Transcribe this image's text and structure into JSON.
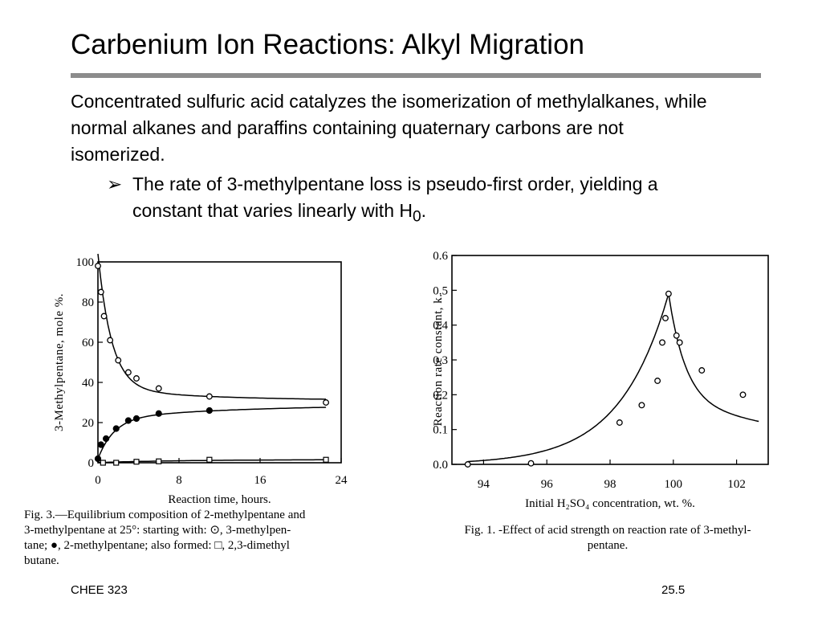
{
  "slide": {
    "title": "Carbenium Ion Reactions: Alkyl Migration",
    "paragraph": "Concentrated sulfuric acid catalyzes the isomerization of methylalkanes, while normal alkanes and paraffins containing quaternary carbons are not isomerized.",
    "bullet_arrow": "➢",
    "bullet_text_pre": "The rate of 3-methylpentane loss is pseudo-first order, yielding a constant that varies linearly with H",
    "bullet_sub": "0",
    "bullet_text_post": ".",
    "footer_left": "CHEE 323",
    "footer_right": "25.5"
  },
  "chart_data": [
    {
      "type": "scatter",
      "xlabel": "Reaction time, hours.",
      "ylabel": "3-Methylpentane, mole %.",
      "xlim": [
        0,
        24
      ],
      "ylim": [
        0,
        100
      ],
      "xticks": [
        "0",
        "8",
        "16",
        "24"
      ],
      "yticks": [
        "0",
        "20",
        "40",
        "60",
        "80",
        "100"
      ],
      "grid": false,
      "series": [
        {
          "marker": "open-circle",
          "x": [
            0,
            0.3,
            0.6,
            1.2,
            2.0,
            3.0,
            3.8,
            6.0,
            11.0,
            22.5
          ],
          "y": [
            98,
            85,
            73,
            61,
            51,
            45,
            42,
            37,
            33,
            30
          ]
        },
        {
          "marker": "filled-circle",
          "x": [
            0,
            0.3,
            0.8,
            1.8,
            3.0,
            3.8,
            6.0,
            11.0
          ],
          "y": [
            2,
            9,
            12,
            17,
            21,
            22,
            24.5,
            26
          ]
        },
        {
          "marker": "open-square",
          "x": [
            0.5,
            1.8,
            3.8,
            6.0,
            11.0,
            22.5
          ],
          "y": [
            0,
            0,
            0.5,
            0.7,
            1.5,
            1.5
          ]
        }
      ],
      "caption": [
        "Fig. 3.—Equilibrium composition of 2-methylpentane and",
        "3-methylpentane at 25°: starting with: ⊙, 3-methylpen-",
        "tane; ●, 2-methylpentane; also formed: □, 2,3-dimethyl",
        "butane."
      ]
    },
    {
      "type": "scatter",
      "xlabel": "Initial H₂SO₄ concentration, wt. %.",
      "ylabel": "Reaction rate constant, k.",
      "xlim": [
        93,
        103
      ],
      "ylim": [
        0,
        0.6
      ],
      "xticks": [
        "94",
        "96",
        "98",
        "100",
        "102"
      ],
      "yticks": [
        "0.0",
        "0.1",
        "0.2",
        "0.3",
        "0.4",
        "0.5",
        "0.6"
      ],
      "grid": false,
      "series": [
        {
          "marker": "open-circle",
          "x": [
            93.5,
            95.5,
            98.3,
            99.0,
            99.5,
            99.65,
            99.75,
            99.85,
            100.1,
            100.2,
            100.9,
            102.2
          ],
          "y": [
            0.0,
            0.003,
            0.12,
            0.17,
            0.24,
            0.35,
            0.42,
            0.49,
            0.37,
            0.35,
            0.27,
            0.2
          ]
        }
      ],
      "caption": [
        "Fig. 1. -Effect of acid strength on reaction rate of 3-methyl-",
        "pentane."
      ]
    }
  ]
}
